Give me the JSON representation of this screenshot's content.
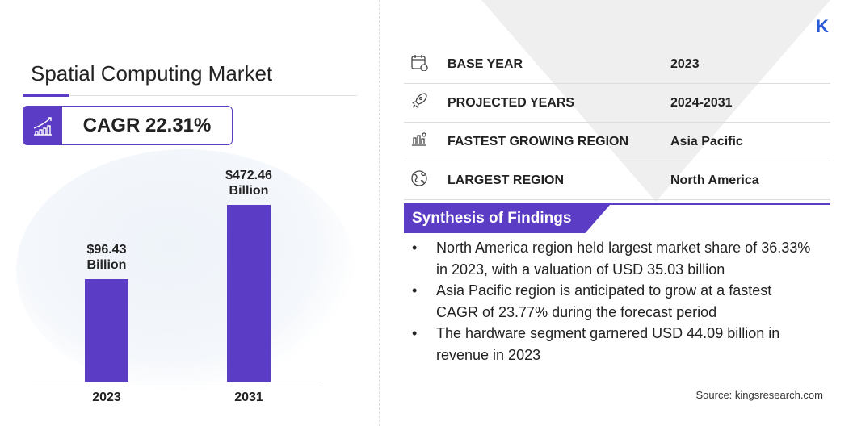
{
  "header": {
    "title": "Spatial Computing Market",
    "cagr": "CAGR 22.31%",
    "logo": "K"
  },
  "chart_data": {
    "type": "bar",
    "categories": [
      "2023",
      "2031"
    ],
    "values": [
      96.43,
      472.46
    ],
    "labels": [
      "$96.43\nBillion",
      "$472.46\nBillion"
    ],
    "unit": "USD Billion",
    "color": "#5b3cc4"
  },
  "info": [
    {
      "icon": "calendar-icon",
      "label": "BASE YEAR",
      "value": "2023"
    },
    {
      "icon": "rocket-icon",
      "label": "PROJECTED YEARS",
      "value": "2024-2031"
    },
    {
      "icon": "growth-region-icon",
      "label": "FASTEST GROWING REGION",
      "value": "Asia Pacific"
    },
    {
      "icon": "globe-icon",
      "label": "LARGEST REGION",
      "value": "North America"
    }
  ],
  "synthesis": {
    "title": "Synthesis of Findings",
    "items": [
      "North America region held largest market share of 36.33% in 2023, with a valuation of USD 35.03 billion",
      "Asia Pacific region is anticipated to grow at a fastest CAGR of 23.77% during the forecast period",
      "The hardware segment garnered USD 44.09 billion in revenue in 2023"
    ]
  },
  "source": "Source: kingsresearch.com"
}
